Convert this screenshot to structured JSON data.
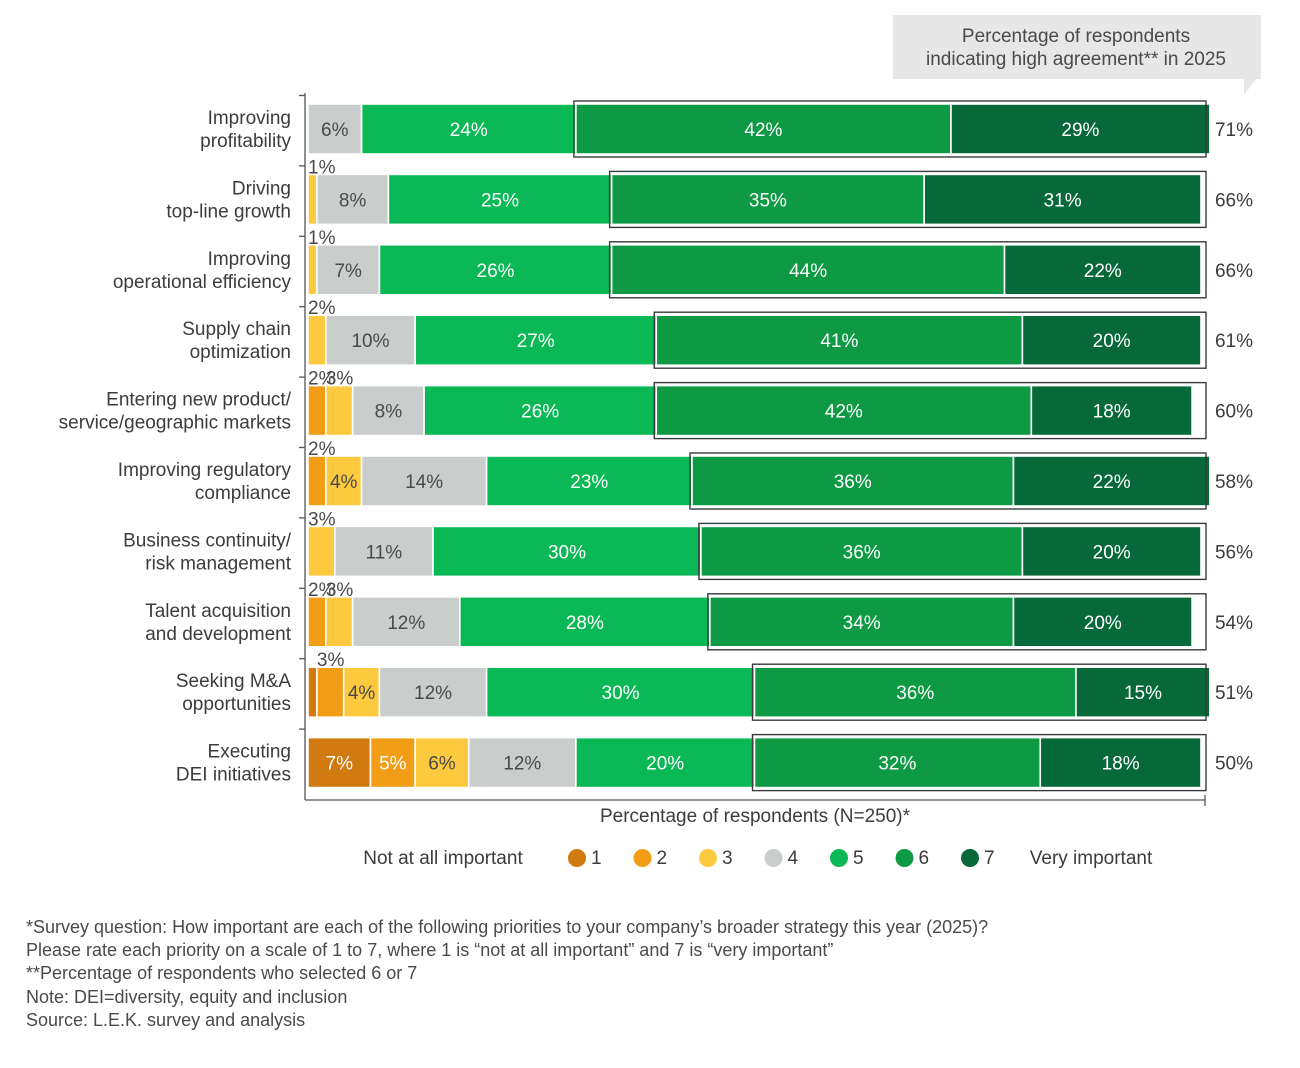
{
  "chart_data": {
    "type": "bar",
    "orientation": "horizontal",
    "stacked": true,
    "callout": {
      "line1": "Percentage of respondents",
      "line2": "indicating high agreement** in 2025"
    },
    "xlabel": "Percentage of respondents (N=250)*",
    "xlim": [
      0,
      100
    ],
    "categories": [
      {
        "lines": [
          "Improving",
          "profitability"
        ],
        "high_agreement": "71%"
      },
      {
        "lines": [
          "Driving",
          "top-line growth"
        ],
        "high_agreement": "66%"
      },
      {
        "lines": [
          "Improving",
          "operational efficiency"
        ],
        "high_agreement": "66%"
      },
      {
        "lines": [
          "Supply chain",
          "optimization"
        ],
        "high_agreement": "61%"
      },
      {
        "lines": [
          "Entering new product/",
          "service/geographic markets"
        ],
        "high_agreement": "60%"
      },
      {
        "lines": [
          "Improving regulatory",
          "compliance"
        ],
        "high_agreement": "58%"
      },
      {
        "lines": [
          "Business continuity/",
          "risk management"
        ],
        "high_agreement": "56%"
      },
      {
        "lines": [
          "Talent acquisition",
          "and development"
        ],
        "high_agreement": "54%"
      },
      {
        "lines": [
          "Seeking M&A",
          "opportunities"
        ],
        "high_agreement": "51%"
      },
      {
        "lines": [
          "Executing",
          "DEI initiatives"
        ],
        "high_agreement": "50%"
      }
    ],
    "series": [
      {
        "name": "1",
        "color": "#d17a0f",
        "values": [
          0,
          0,
          0,
          0,
          0,
          0,
          0,
          0,
          1,
          7
        ],
        "labels": [
          "",
          "",
          "",
          "",
          "",
          "",
          "",
          "",
          "",
          "7%"
        ]
      },
      {
        "name": "2",
        "color": "#f29d16",
        "values": [
          0,
          0,
          0,
          0,
          2,
          2,
          0,
          2,
          3,
          5
        ],
        "labels": [
          "",
          "",
          "",
          "",
          "2%",
          "2%",
          "",
          "2%",
          "3%",
          "5%"
        ]
      },
      {
        "name": "3",
        "color": "#fcc93f",
        "values": [
          0,
          1,
          1,
          2,
          3,
          4,
          3,
          3,
          4,
          6
        ],
        "labels": [
          "",
          "1%",
          "1%",
          "2%",
          "3%",
          "4%",
          "3%",
          "3%",
          "4%",
          "6%"
        ]
      },
      {
        "name": "4",
        "color": "#c9cdcc",
        "values": [
          6,
          8,
          7,
          10,
          8,
          14,
          11,
          12,
          12,
          12
        ],
        "labels": [
          "6%",
          "8%",
          "7%",
          "10%",
          "8%",
          "14%",
          "11%",
          "12%",
          "12%",
          "12%"
        ]
      },
      {
        "name": "5",
        "color": "#0ab856",
        "values": [
          24,
          25,
          26,
          27,
          26,
          23,
          30,
          28,
          30,
          20
        ],
        "labels": [
          "24%",
          "25%",
          "26%",
          "27%",
          "26%",
          "23%",
          "30%",
          "28%",
          "30%",
          "20%"
        ]
      },
      {
        "name": "6",
        "color": "#0e9a44",
        "values": [
          42,
          35,
          44,
          41,
          42,
          36,
          36,
          34,
          36,
          32
        ],
        "labels": [
          "42%",
          "35%",
          "44%",
          "41%",
          "42%",
          "36%",
          "36%",
          "34%",
          "36%",
          "32%"
        ]
      },
      {
        "name": "7",
        "color": "#07693a",
        "values": [
          29,
          31,
          22,
          20,
          18,
          22,
          20,
          20,
          15,
          18
        ],
        "labels": [
          "29%",
          "31%",
          "22%",
          "20%",
          "18%",
          "22%",
          "20%",
          "20%",
          "15%",
          "18%"
        ]
      }
    ],
    "legend": {
      "placement": "bottom",
      "left_text": "Not at all important",
      "right_text": "Very important"
    }
  },
  "footnotes": [
    "*Survey question: How important are each of the following priorities to your company’s broader strategy this year (2025)?",
    "Please rate each priority on a scale of 1 to 7, where 1 is “not at all important” and 7 is “very important”",
    "**Percentage of respondents who selected 6 or 7",
    "Note: DEI=diversity, equity and inclusion",
    "Source: L.E.K. survey and analysis"
  ]
}
